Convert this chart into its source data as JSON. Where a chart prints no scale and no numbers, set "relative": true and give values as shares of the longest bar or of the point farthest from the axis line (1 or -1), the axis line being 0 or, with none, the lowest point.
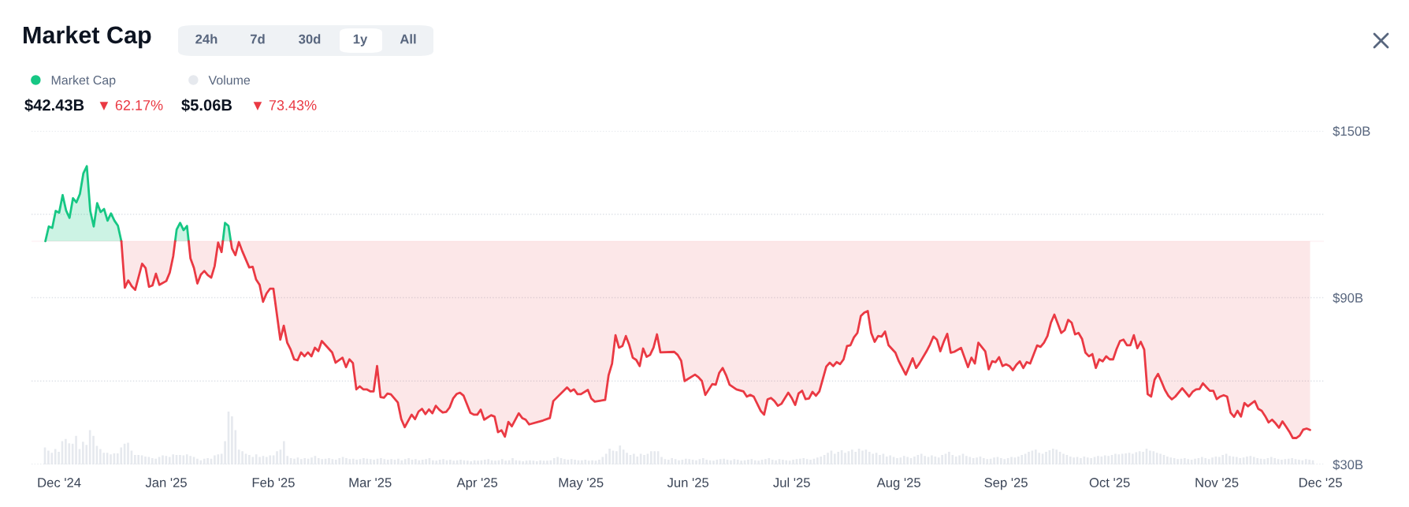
{
  "chart_data": [
    {
      "type": "line",
      "title": "Market Cap",
      "annotations": [
        "24h",
        "7d",
        "30d",
        "1y",
        "All",
        "$42.43B",
        "▼ 62.17%"
      ],
      "series": [
        {
          "name": "Market Cap",
          "type": "area",
          "color": "#16c784",
          "x": [
            "2024-11-27",
            "2024-11-28",
            "2024-11-29",
            "2024-11-30",
            "2024-12-01",
            "2024-12-02",
            "2024-12-03",
            "2024-12-04",
            "2024-12-05",
            "2024-12-06",
            "2024-12-07",
            "2024-12-08",
            "2024-12-09",
            "2024-12-10",
            "2024-12-11",
            "2024-12-12",
            "2024-12-13",
            "2024-12-14",
            "2024-12-15",
            "2024-12-16",
            "2024-12-17",
            "2024-12-18",
            "2024-12-19",
            "2024-12-20",
            "2025-01-03T13:30",
            "2025-01-04",
            "2025-01-05",
            "2025-01-06",
            "2025-01-07",
            "2025-01-07T11:15",
            "2025-01-08",
            "2025-01-17T09:00",
            "2025-01-18",
            "2025-01-19",
            "2025-01-19T16:15"
          ],
          "values": [
            110.3,
            115.6,
            115.1,
            121.2,
            120.6,
            126.9,
            121.4,
            118.7,
            125.8,
            124.3,
            127.3,
            134.7,
            137.3,
            121.2,
            115.6,
            124.0,
            120.8,
            121.9,
            117.7,
            120.3,
            117.7,
            115.9,
            110.3,
            null,
            110.3,
            114.5,
            116.9,
            114.3,
            115.8,
            110.3,
            null,
            110.3,
            116.9,
            115.8,
            110.3
          ]
        },
        {
          "color": "#ea3943",
          "x": [
            "2024-12-19",
            "2024-12-20",
            "2024-12-21",
            "2024-12-22",
            "2024-12-23",
            "2024-12-25",
            "2024-12-26",
            "2024-12-27",
            "2024-12-28",
            "2024-12-29",
            "2024-12-30",
            "2025-01-01",
            "2025-01-02",
            "2025-01-03",
            "2025-01-03T13:30",
            "2025-01-04",
            "2025-01-07T11:15",
            "2025-01-08",
            "2025-01-09",
            "2025-01-10",
            "2025-01-11",
            "2025-01-12",
            "2025-01-13",
            "2025-01-14",
            "2025-01-15",
            "2025-01-16",
            "2025-01-17",
            "2025-01-17T09:00",
            "2025-01-18",
            "2025-01-19T16:15",
            "2025-01-20",
            "2025-01-21",
            "2025-01-22",
            "2025-01-23",
            "2025-01-24",
            "2025-01-25",
            "2025-01-26",
            "2025-01-27",
            "2025-01-28",
            "2025-01-29",
            "2025-01-30",
            "2025-01-31",
            "2025-02-01",
            "2025-02-03",
            "2025-02-04",
            "2025-02-05",
            "2025-02-06",
            "2025-02-07",
            "2025-02-08",
            "2025-02-09",
            "2025-02-10",
            "2025-02-11",
            "2025-02-12",
            "2025-02-13",
            "2025-02-14",
            "2025-02-15",
            "2025-02-18",
            "2025-02-19",
            "2025-02-21",
            "2025-02-22",
            "2025-02-23",
            "2025-02-24",
            "2025-02-25",
            "2025-02-26",
            "2025-02-27",
            "2025-02-28",
            "2025-03-01",
            "2025-03-02",
            "2025-03-03",
            "2025-03-04",
            "2025-03-05",
            "2025-03-06",
            "2025-03-07",
            "2025-03-09",
            "2025-03-10",
            "2025-03-11",
            "2025-03-13",
            "2025-03-14",
            "2025-03-15",
            "2025-03-16",
            "2025-03-17",
            "2025-03-18",
            "2025-03-19",
            "2025-03-20",
            "2025-03-21",
            "2025-03-22",
            "2025-03-23",
            "2025-03-24",
            "2025-03-25",
            "2025-03-26",
            "2025-03-27",
            "2025-03-28",
            "2025-03-30",
            "2025-03-31",
            "2025-04-01",
            "2025-04-02",
            "2025-04-03",
            "2025-04-05",
            "2025-04-06",
            "2025-04-07",
            "2025-04-08",
            "2025-04-09",
            "2025-04-10",
            "2025-04-11",
            "2025-04-13",
            "2025-04-14",
            "2025-04-15",
            "2025-04-16",
            "2025-04-20",
            "2025-04-22",
            "2025-04-23",
            "2025-04-27",
            "2025-04-28",
            "2025-04-29",
            "2025-04-30",
            "2025-05-01",
            "2025-05-03",
            "2025-05-04",
            "2025-05-05",
            "2025-05-08",
            "2025-05-09",
            "2025-05-10",
            "2025-05-11",
            "2025-05-12",
            "2025-05-13",
            "2025-05-14",
            "2025-05-15",
            "2025-05-16",
            "2025-05-17",
            "2025-05-18",
            "2025-05-19",
            "2025-05-20",
            "2025-05-21",
            "2025-05-22",
            "2025-05-23",
            "2025-05-24",
            "2025-05-28",
            "2025-05-29",
            "2025-05-30",
            "2025-05-31",
            "2025-06-03",
            "2025-06-04",
            "2025-06-05",
            "2025-06-06",
            "2025-06-08",
            "2025-06-09",
            "2025-06-10",
            "2025-06-11",
            "2025-06-12",
            "2025-06-13",
            "2025-06-15",
            "2025-06-17",
            "2025-06-18",
            "2025-06-19",
            "2025-06-20",
            "2025-06-22",
            "2025-06-23",
            "2025-06-24",
            "2025-06-25",
            "2025-06-26",
            "2025-06-27",
            "2025-06-28",
            "2025-06-30",
            "2025-07-01",
            "2025-07-02",
            "2025-07-03",
            "2025-07-04",
            "2025-07-05",
            "2025-07-06",
            "2025-07-07",
            "2025-07-08",
            "2025-07-09",
            "2025-07-11",
            "2025-07-12",
            "2025-07-13",
            "2025-07-14",
            "2025-07-15",
            "2025-07-16",
            "2025-07-17",
            "2025-07-18",
            "2025-07-19",
            "2025-07-20",
            "2025-07-21",
            "2025-07-22",
            "2025-07-23",
            "2025-07-24",
            "2025-07-25",
            "2025-07-26",
            "2025-07-27",
            "2025-07-28",
            "2025-07-29",
            "2025-07-31",
            "2025-08-01",
            "2025-08-03",
            "2025-08-05",
            "2025-08-06",
            "2025-08-07",
            "2025-08-09",
            "2025-08-10",
            "2025-08-11",
            "2025-08-12",
            "2025-08-13",
            "2025-08-14",
            "2025-08-15",
            "2025-08-16",
            "2025-08-17",
            "2025-08-19",
            "2025-08-21",
            "2025-08-22",
            "2025-08-23",
            "2025-08-24",
            "2025-08-26",
            "2025-08-27",
            "2025-08-28",
            "2025-08-29",
            "2025-08-30",
            "2025-08-31",
            "2025-09-01",
            "2025-09-02",
            "2025-09-03",
            "2025-09-04",
            "2025-09-05",
            "2025-09-06",
            "2025-09-07",
            "2025-09-08",
            "2025-09-10",
            "2025-09-11",
            "2025-09-12",
            "2025-09-13",
            "2025-09-14",
            "2025-09-15",
            "2025-09-17",
            "2025-09-18",
            "2025-09-19",
            "2025-09-20",
            "2025-09-21",
            "2025-09-22",
            "2025-09-23",
            "2025-09-24",
            "2025-09-25",
            "2025-09-26",
            "2025-09-27",
            "2025-09-28",
            "2025-09-29",
            "2025-09-30",
            "2025-10-01",
            "2025-10-02",
            "2025-10-03",
            "2025-10-04",
            "2025-10-05",
            "2025-10-06",
            "2025-10-07",
            "2025-10-08",
            "2025-10-09",
            "2025-10-10",
            "2025-10-11",
            "2025-10-12",
            "2025-10-13",
            "2025-10-14",
            "2025-10-15",
            "2025-10-16",
            "2025-10-17",
            "2025-10-18",
            "2025-10-19",
            "2025-10-20",
            "2025-10-22",
            "2025-10-24",
            "2025-10-25",
            "2025-10-26",
            "2025-10-27",
            "2025-10-28",
            "2025-10-29",
            "2025-10-30",
            "2025-10-31",
            "2025-11-01",
            "2025-11-02",
            "2025-11-03",
            "2025-11-04",
            "2025-11-05",
            "2025-11-06",
            "2025-11-07",
            "2025-11-08",
            "2025-11-09",
            "2025-11-10",
            "2025-11-11",
            "2025-11-12",
            "2025-11-13",
            "2025-11-14",
            "2025-11-15",
            "2025-11-16",
            "2025-11-17",
            "2025-11-18",
            "2025-11-19",
            "2025-11-20",
            "2025-11-21",
            "2025-11-22",
            "2025-11-23",
            "2025-11-24",
            "2025-11-25",
            "2025-11-26",
            "2025-11-27",
            "2025-11-28"
          ],
          "values": [
            110.3,
            93.6,
            96.2,
            94.1,
            92.8,
            102.2,
            100.7,
            93.9,
            94.4,
            98.6,
            94.6,
            96.0,
            99.0,
            104.9,
            110.3,
            null,
            110.3,
            104.1,
            100.7,
            95.1,
            98.3,
            99.6,
            98.1,
            97.2,
            101.4,
            109.8,
            106.4,
            110.3,
            null,
            110.3,
            107.7,
            105.3,
            110.0,
            106.7,
            103.8,
            100.9,
            101.1,
            96.5,
            94.6,
            88.5,
            91.5,
            93.2,
            93.2,
            74.9,
            79.9,
            73.8,
            71.3,
            67.8,
            67.5,
            70.3,
            68.9,
            70.3,
            68.9,
            72.0,
            70.8,
            74.4,
            70.3,
            66.6,
            68.4,
            65.0,
            67.8,
            66.5,
            57.0,
            58.1,
            57.0,
            57.0,
            56.3,
            56.3,
            65.4,
            54.2,
            54.0,
            55.5,
            55.2,
            52.3,
            46.3,
            43.4,
            47.9,
            46.3,
            49.0,
            50.0,
            48.1,
            49.8,
            48.4,
            51.1,
            49.7,
            48.7,
            48.9,
            50.5,
            53.7,
            55.3,
            55.8,
            54.8,
            48.6,
            47.9,
            47.9,
            49.7,
            46.1,
            47.7,
            47.2,
            41.6,
            42.3,
            40.0,
            45.3,
            43.7,
            48.4,
            46.7,
            46.1,
            44.4,
            45.8,
            46.7,
            52.8,
            57.7,
            56.3,
            57.0,
            55.3,
            55.3,
            56.8,
            53.7,
            52.6,
            53.2,
            62.1,
            66.3,
            76.5,
            72.0,
            72.6,
            76.2,
            72.9,
            68.4,
            67.6,
            65.4,
            71.7,
            68.7,
            69.4,
            72.0,
            76.8,
            70.3,
            70.5,
            69.4,
            67.3,
            60.0,
            62.3,
            61.4,
            60.0,
            55.0,
            58.9,
            58.7,
            62.9,
            64.7,
            62.1,
            58.7,
            57.0,
            56.3,
            54.4,
            55.0,
            54.4,
            49.3,
            47.9,
            53.4,
            53.9,
            52.8,
            51.1,
            51.8,
            55.8,
            53.9,
            51.4,
            55.6,
            56.5,
            53.5,
            53.7,
            56.1,
            54.7,
            56.3,
            65.2,
            66.6,
            65.4,
            66.8,
            66.1,
            67.8,
            72.6,
            72.9,
            75.7,
            77.3,
            83.4,
            84.6,
            85.2,
            77.3,
            74.1,
            76.2,
            76.0,
            77.8,
            72.9,
            70.2,
            67.1,
            62.3,
            68.2,
            64.7,
            66.5,
            70.7,
            73.1,
            76.0,
            74.9,
            70.7,
            74.2,
            77.0,
            70.2,
            70.5,
            71.9,
            65.0,
            68.4,
            66.3,
            73.8,
            70.7,
            64.2,
            67.1,
            66.8,
            68.6,
            65.4,
            66.0,
            65.4,
            63.9,
            65.8,
            67.1,
            64.7,
            66.8,
            66.3,
            72.8,
            72.3,
            73.8,
            76.2,
            81.0,
            83.9,
            77.3,
            78.3,
            82.0,
            81.0,
            76.8,
            77.3,
            75.2,
            70.2,
            68.9,
            69.7,
            64.7,
            67.8,
            67.1,
            68.9,
            67.8,
            67.8,
            71.5,
            74.4,
            74.9,
            72.9,
            72.9,
            76.5,
            71.8,
            74.1,
            71.3,
            55.3,
            54.4,
            60.5,
            62.6,
            59.8,
            56.8,
            54.7,
            53.4,
            54.4,
            57.4,
            54.4,
            56.1,
            57.0,
            57.1,
            59.2,
            57.8,
            56.5,
            56.5,
            53.5,
            54.4,
            54.9,
            54.4,
            48.6,
            47.1,
            49.3,
            47.2,
            52.1,
            50.9,
            51.9,
            52.8,
            50.0,
            49.3,
            47.4,
            45.1,
            46.1,
            44.8,
            43.2,
            45.5,
            43.7,
            41.8,
            39.5,
            39.5,
            40.4,
            42.5,
            42.9,
            42.4
          ]
        }
      ],
      "ref_lines": [
        {
          "axis": "y",
          "value": 110.3,
          "color": "#ea3943"
        }
      ],
      "xlim": [
        "2024-11-23",
        "2025-12-02"
      ],
      "xticks": [
        {
          "value": "2024-12-01",
          "label": "Dec '24"
        },
        {
          "value": "2025-01-01",
          "label": "Jan '25"
        },
        {
          "value": "2025-02-01",
          "label": "Feb '25"
        },
        {
          "value": "2025-03-01",
          "label": "Mar '25"
        },
        {
          "value": "2025-04-01",
          "label": "Apr '25"
        },
        {
          "value": "2025-05-01",
          "label": "May '25"
        },
        {
          "value": "2025-06-01",
          "label": "Jun '25"
        },
        {
          "value": "2025-07-01",
          "label": "Jul '25"
        },
        {
          "value": "2025-08-01",
          "label": "Aug '25"
        },
        {
          "value": "2025-09-01",
          "label": "Sep '25"
        },
        {
          "value": "2025-10-01",
          "label": "Oct '25"
        },
        {
          "value": "2025-11-01",
          "label": "Nov '25"
        },
        {
          "value": "2025-12-01",
          "label": "Dec '25"
        }
      ],
      "ylim": [
        30,
        150
      ],
      "yticks": [
        {
          "value": 30,
          "label": "$30B"
        },
        {
          "value": 60,
          "label": null
        },
        {
          "value": 90,
          "label": "$90B"
        },
        {
          "value": 120,
          "label": null
        },
        {
          "value": 150,
          "label": "$150B"
        }
      ],
      "grid": "y",
      "legend": "top left"
    },
    {
      "type": "bar",
      "relative": true,
      "tick_labels": false,
      "legend": "top left",
      "annotations": [
        "$5.06B",
        "▼ 73.43%"
      ],
      "categories": [
        null,
        null,
        null,
        null,
        null,
        null,
        null,
        null,
        null,
        null,
        null,
        null,
        null,
        null,
        null,
        null,
        null,
        null,
        null,
        null,
        null,
        null,
        null,
        null,
        null,
        null,
        null,
        null,
        null,
        null,
        null,
        null,
        null,
        null,
        null,
        null,
        null,
        null,
        null,
        null,
        null,
        null,
        null,
        null,
        null,
        null,
        null,
        null,
        null,
        null,
        null,
        null,
        null,
        null,
        null,
        null,
        null,
        null,
        null,
        null,
        null,
        null,
        null,
        null,
        null,
        null,
        null,
        null,
        null,
        null,
        null,
        null,
        null,
        null,
        null,
        null,
        null,
        null,
        null,
        null,
        null,
        null,
        null,
        null,
        null,
        null,
        null,
        null,
        null,
        null,
        null,
        null,
        null,
        null,
        null,
        null,
        null,
        null,
        null,
        null,
        null,
        null,
        null,
        null,
        null,
        null,
        null,
        null,
        null,
        null,
        null,
        null,
        null,
        null,
        null,
        null,
        null,
        null,
        null,
        null,
        null,
        null,
        null,
        null,
        null,
        null,
        null,
        null,
        null,
        null,
        null,
        null,
        null,
        null,
        null,
        null,
        null,
        null,
        null,
        null,
        null,
        null,
        null,
        null,
        null,
        null,
        null,
        null,
        null,
        null,
        null,
        null,
        null,
        null,
        null,
        null,
        null,
        null,
        null,
        null,
        null,
        null,
        null,
        null,
        null,
        null,
        null,
        null,
        null,
        null,
        null,
        null,
        null,
        null,
        null,
        null,
        null,
        null,
        null,
        null,
        null,
        null,
        null,
        null,
        null,
        null,
        null,
        null,
        null,
        null,
        null,
        null,
        null,
        null,
        null,
        null,
        null,
        null,
        null,
        null,
        null,
        null,
        null,
        null,
        null,
        null,
        null,
        null,
        null,
        null,
        null,
        null,
        null,
        null,
        null,
        null,
        null,
        null,
        null,
        null,
        null,
        null,
        null,
        null,
        null,
        null,
        null,
        null,
        null,
        null,
        null,
        null,
        null,
        null,
        null,
        null,
        null,
        null,
        null,
        null,
        null,
        null,
        null,
        null,
        null,
        null,
        null,
        null,
        null,
        null,
        null,
        null,
        null,
        null,
        null,
        null,
        null,
        null,
        null,
        null,
        null,
        null,
        null,
        null,
        null,
        null,
        null,
        null,
        null,
        null,
        null,
        null,
        null,
        null,
        null,
        null,
        null,
        null,
        null,
        null,
        null,
        null,
        null,
        null,
        null,
        null,
        null,
        null,
        null,
        null,
        null,
        null,
        null,
        null,
        null,
        null,
        null,
        null,
        null,
        null,
        null,
        null,
        null,
        null,
        null,
        null,
        null,
        null,
        null,
        null,
        null,
        null,
        null,
        null,
        null,
        null,
        null,
        null,
        null,
        null,
        null,
        null,
        null,
        null,
        null,
        null,
        null,
        null,
        null,
        null,
        null,
        null,
        null,
        null,
        null,
        null,
        null,
        null,
        null,
        null,
        null,
        null,
        null,
        null,
        null,
        null,
        null,
        null,
        null,
        null,
        null,
        null,
        null,
        null,
        null,
        null,
        null,
        null,
        null,
        null,
        null,
        null,
        null,
        null,
        null,
        null,
        null
      ],
      "series": [
        {
          "name": "Volume",
          "color": "#e6e9ee",
          "values": [
            0.32,
            0.26,
            0.22,
            0.29,
            0.24,
            0.44,
            0.48,
            0.4,
            0.39,
            0.54,
            0.29,
            0.43,
            0.37,
            0.65,
            0.54,
            0.35,
            0.29,
            0.22,
            0.22,
            0.19,
            0.21,
            0.21,
            0.32,
            0.39,
            0.41,
            0.26,
            0.18,
            0.18,
            0.17,
            0.15,
            0.14,
            0.12,
            0.11,
            0.14,
            0.17,
            0.16,
            0.14,
            0.19,
            0.18,
            0.18,
            0.17,
            0.19,
            0.16,
            0.14,
            0.11,
            0.08,
            0.11,
            0.12,
            0.11,
            0.17,
            0.19,
            0.2,
            0.44,
            1.0,
            0.91,
            0.65,
            0.28,
            0.25,
            0.2,
            0.18,
            0.14,
            0.19,
            0.14,
            0.16,
            0.14,
            0.17,
            0.17,
            0.25,
            0.28,
            0.44,
            0.16,
            0.12,
            0.11,
            0.13,
            0.1,
            0.12,
            0.11,
            0.13,
            0.16,
            0.12,
            0.1,
            0.11,
            0.12,
            0.1,
            0.09,
            0.12,
            0.14,
            0.12,
            0.1,
            0.11,
            0.09,
            0.1,
            0.12,
            0.11,
            0.1,
            0.09,
            0.11,
            0.12,
            0.1,
            0.09,
            0.1,
            0.09,
            0.11,
            0.08,
            0.1,
            0.12,
            0.09,
            0.1,
            0.08,
            0.09,
            0.1,
            0.12,
            0.08,
            0.07,
            0.09,
            0.1,
            0.08,
            0.09,
            0.07,
            0.08,
            0.09,
            0.08,
            0.07,
            0.06,
            0.08,
            0.07,
            0.08,
            0.09,
            0.1,
            0.08,
            0.07,
            0.08,
            0.1,
            0.07,
            0.08,
            0.12,
            0.08,
            0.07,
            0.06,
            0.07,
            0.08,
            0.07,
            0.06,
            0.08,
            0.07,
            0.07,
            0.08,
            0.12,
            0.14,
            0.12,
            0.1,
            0.09,
            0.1,
            0.09,
            0.08,
            0.08,
            0.09,
            0.07,
            0.08,
            0.07,
            0.09,
            0.14,
            0.2,
            0.3,
            0.26,
            0.25,
            0.36,
            0.28,
            0.22,
            0.18,
            0.2,
            0.15,
            0.2,
            0.18,
            0.2,
            0.25,
            0.25,
            0.25,
            0.14,
            0.1,
            0.09,
            0.12,
            0.1,
            0.08,
            0.09,
            0.11,
            0.1,
            0.09,
            0.08,
            0.1,
            0.12,
            0.09,
            0.08,
            0.07,
            0.09,
            0.1,
            0.11,
            0.09,
            0.08,
            0.1,
            0.09,
            0.07,
            0.08,
            0.09,
            0.1,
            0.08,
            0.07,
            0.09,
            0.1,
            0.12,
            0.09,
            0.08,
            0.1,
            0.09,
            0.08,
            0.07,
            0.09,
            0.1,
            0.11,
            0.12,
            0.1,
            0.09,
            0.11,
            0.13,
            0.15,
            0.18,
            0.22,
            0.26,
            0.2,
            0.24,
            0.27,
            0.22,
            0.25,
            0.28,
            0.24,
            0.3,
            0.26,
            0.28,
            0.24,
            0.2,
            0.22,
            0.18,
            0.2,
            0.15,
            0.17,
            0.14,
            0.12,
            0.13,
            0.16,
            0.14,
            0.12,
            0.15,
            0.18,
            0.2,
            0.16,
            0.14,
            0.17,
            0.15,
            0.13,
            0.18,
            0.2,
            0.24,
            0.18,
            0.15,
            0.17,
            0.2,
            0.16,
            0.14,
            0.12,
            0.13,
            0.15,
            0.12,
            0.1,
            0.11,
            0.13,
            0.14,
            0.12,
            0.1,
            0.12,
            0.14,
            0.13,
            0.15,
            0.18,
            0.2,
            0.24,
            0.26,
            0.28,
            0.22,
            0.2,
            0.24,
            0.27,
            0.3,
            0.28,
            0.24,
            0.2,
            0.18,
            0.15,
            0.13,
            0.14,
            0.12,
            0.15,
            0.13,
            0.12,
            0.14,
            0.16,
            0.15,
            0.17,
            0.16,
            0.18,
            0.2,
            0.19,
            0.2,
            0.21,
            0.22,
            0.2,
            0.23,
            0.25,
            0.24,
            0.3,
            0.26,
            0.25,
            0.22,
            0.2,
            0.18,
            0.15,
            0.13,
            0.12,
            0.1,
            0.11,
            0.12,
            0.1,
            0.09,
            0.11,
            0.12,
            0.14,
            0.12,
            0.1,
            0.13,
            0.15,
            0.14,
            0.18,
            0.2,
            0.16,
            0.15,
            0.14,
            0.12,
            0.13,
            0.15,
            0.16,
            0.14,
            0.12,
            0.11,
            0.1,
            0.12,
            0.14,
            0.12,
            0.1,
            0.09,
            0.1,
            0.11,
            0.12,
            0.1,
            0.09,
            0.08,
            0.1,
            0.09,
            0.08
          ]
        }
      ]
    }
  ]
}
